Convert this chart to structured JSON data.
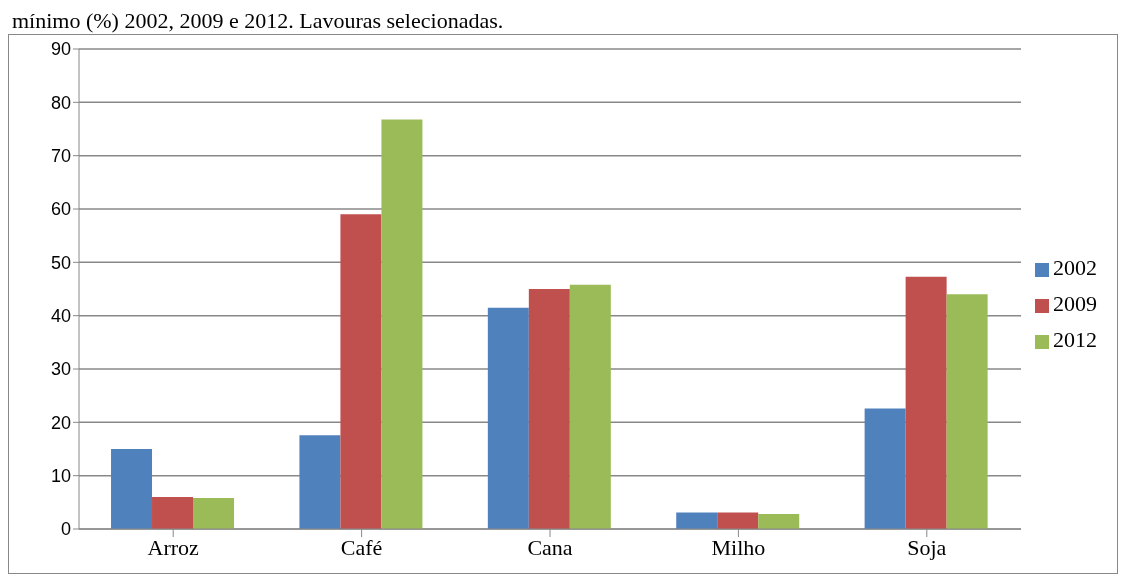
{
  "chart_data": {
    "type": "bar",
    "title": "mínimo (%) 2002, 2009 e 2012. Lavouras selecionadas.",
    "categories": [
      "Arroz",
      "Café",
      "Cana",
      "Milho",
      "Soja"
    ],
    "series": [
      {
        "name": "2002",
        "color": "#4f81bd",
        "values": [
          15,
          17.6,
          41.5,
          3.1,
          22.6
        ]
      },
      {
        "name": "2009",
        "color": "#c0504d",
        "values": [
          6,
          59,
          45,
          3.1,
          47.3
        ]
      },
      {
        "name": "2012",
        "color": "#9bbb59",
        "values": [
          5.8,
          76.8,
          45.8,
          2.8,
          44
        ]
      }
    ],
    "ylim": [
      0,
      90
    ],
    "yticks": [
      0,
      10,
      20,
      30,
      40,
      50,
      60,
      70,
      80,
      90
    ],
    "grid": "y",
    "legend": "right"
  }
}
